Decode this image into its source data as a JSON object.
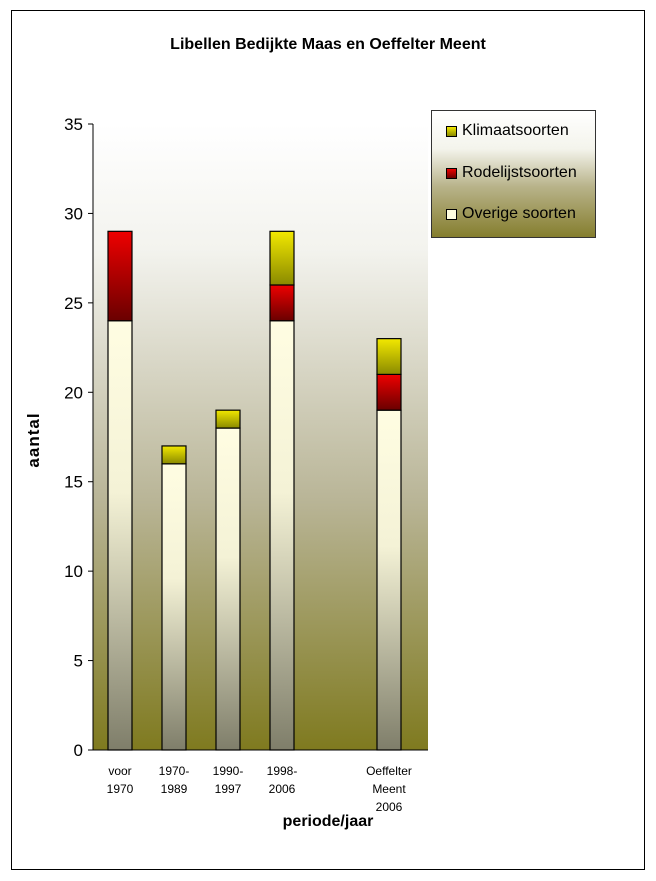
{
  "chart_data": {
    "type": "bar",
    "stacked": true,
    "title": "Libellen Bedijkte Maas en Oeffelter Meent",
    "xlabel": "periode/jaar",
    "ylabel": "aantal",
    "categories": [
      [
        "voor",
        "1970"
      ],
      [
        "1970-",
        "1989"
      ],
      [
        "1990-",
        "1997"
      ],
      [
        "1998-",
        "2006"
      ],
      [
        "Oeffelter",
        "Meent",
        "2006"
      ]
    ],
    "series": [
      {
        "name": "Overige soorten",
        "values": [
          24,
          16,
          18,
          24,
          19
        ]
      },
      {
        "name": "Rodelijstsoorten",
        "values": [
          5,
          0,
          0,
          2,
          2
        ]
      },
      {
        "name": "Klimaatsoorten",
        "values": [
          0,
          1,
          1,
          3,
          2
        ]
      }
    ],
    "ylim": [
      0,
      35
    ],
    "yticks": [
      0,
      5,
      10,
      15,
      20,
      25,
      30,
      35
    ],
    "legend_position": "top-right",
    "legend_order": [
      "Klimaatsoorten",
      "Rodelijstsoorten",
      "Overige soorten"
    ],
    "colors": {
      "Overige soorten": "#fffde0",
      "Rodelijstsoorten": "#e00000",
      "Klimaatsoorten": "#e8e000",
      "plot_gradient_top": "#ffffff",
      "plot_gradient_bottom": "#807a1e"
    }
  }
}
